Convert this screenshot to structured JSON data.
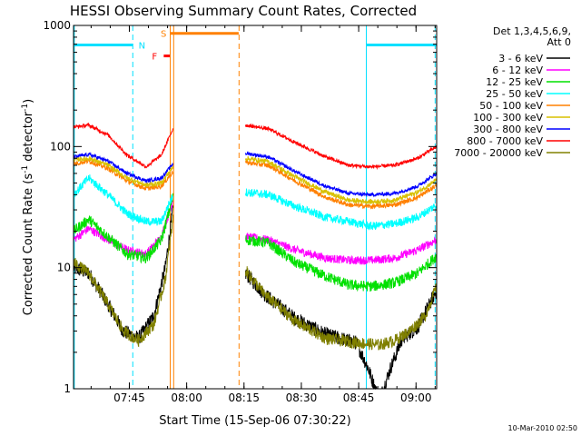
{
  "chart_data": {
    "type": "line",
    "title": "HESSI Observing Summary Count Rates, Corrected",
    "xlabel": "Start Time (15-Sep-06 07:30:22)",
    "ylabel_main": "Corrected Count Rate (s",
    "ylabel_sup1": "-1",
    "ylabel_mid": " detector",
    "ylabel_sup2": "-1",
    "ylabel_end": ")",
    "x_unit": "minutes from 07:30:22",
    "xlim": [
      0,
      95
    ],
    "ylim": [
      1,
      1000
    ],
    "y_scale": "log",
    "x_ticks": [
      {
        "label": "07:45",
        "value": 14.6
      },
      {
        "label": "08:00",
        "value": 29.6
      },
      {
        "label": "08:15",
        "value": 44.6
      },
      {
        "label": "08:30",
        "value": 59.6
      },
      {
        "label": "08:45",
        "value": 74.6
      },
      {
        "label": "09:00",
        "value": 89.6
      }
    ],
    "y_ticks": [
      {
        "label": "1",
        "value": 1
      },
      {
        "label": "10",
        "value": 10
      },
      {
        "label": "100",
        "value": 100
      },
      {
        "label": "1000",
        "value": 1000
      }
    ],
    "legend": {
      "header1": "Det 1,3,4,5,6,9,",
      "header2": "Att 0",
      "placement": "right"
    },
    "data_gap": [
      26.0,
      45.0
    ],
    "series": [
      {
        "name": "3 - 6 keV",
        "color": "#000000",
        "noise": 0.06,
        "seg1": [
          [
            0,
            10
          ],
          [
            4,
            9
          ],
          [
            9,
            5
          ],
          [
            13,
            3
          ],
          [
            17,
            2.6
          ],
          [
            21,
            4
          ],
          [
            24,
            10
          ],
          [
            26,
            30
          ]
        ],
        "seg2": [
          [
            45,
            9
          ],
          [
            50,
            6
          ],
          [
            58,
            3.8
          ],
          [
            66,
            2.8
          ],
          [
            74,
            2.4
          ],
          [
            77,
            1.5
          ],
          [
            80,
            0.8
          ],
          [
            83,
            1.5
          ],
          [
            86,
            2.6
          ],
          [
            90,
            3.2
          ],
          [
            95,
            6.5
          ]
        ]
      },
      {
        "name": "6 - 12 keV",
        "color": "#ff00ff",
        "noise": 0.035,
        "seg1": [
          [
            0,
            17
          ],
          [
            4,
            21
          ],
          [
            9,
            17
          ],
          [
            14,
            14
          ],
          [
            19,
            13
          ],
          [
            23,
            18
          ],
          [
            26,
            36
          ]
        ],
        "seg2": [
          [
            45,
            18
          ],
          [
            51,
            17
          ],
          [
            58,
            14
          ],
          [
            66,
            12
          ],
          [
            72,
            11.5
          ],
          [
            78,
            11.5
          ],
          [
            84,
            12
          ],
          [
            90,
            14
          ],
          [
            95,
            17
          ]
        ]
      },
      {
        "name": "12 - 25 keV",
        "color": "#00e000",
        "noise": 0.045,
        "seg1": [
          [
            0,
            20
          ],
          [
            4,
            25
          ],
          [
            9,
            18
          ],
          [
            14,
            13
          ],
          [
            19,
            12
          ],
          [
            23,
            17
          ],
          [
            26,
            38
          ]
        ],
        "seg2": [
          [
            45,
            17
          ],
          [
            51,
            16
          ],
          [
            58,
            11
          ],
          [
            66,
            8.5
          ],
          [
            72,
            7.2
          ],
          [
            78,
            7
          ],
          [
            84,
            7.5
          ],
          [
            90,
            9
          ],
          [
            95,
            12.5
          ]
        ]
      },
      {
        "name": "25 - 50 keV",
        "color": "#00ffff",
        "noise": 0.035,
        "seg1": [
          [
            0,
            40
          ],
          [
            4,
            55
          ],
          [
            9,
            40
          ],
          [
            14,
            28
          ],
          [
            19,
            24
          ],
          [
            23,
            24
          ],
          [
            26,
            40
          ]
        ],
        "seg2": [
          [
            45,
            42
          ],
          [
            51,
            40
          ],
          [
            58,
            32
          ],
          [
            66,
            26
          ],
          [
            72,
            24
          ],
          [
            78,
            22
          ],
          [
            84,
            23
          ],
          [
            90,
            26
          ],
          [
            95,
            33
          ]
        ]
      },
      {
        "name": "50 - 100 keV",
        "color": "#ff8000",
        "noise": 0.02,
        "seg1": [
          [
            0,
            72
          ],
          [
            4,
            76
          ],
          [
            9,
            66
          ],
          [
            14,
            52
          ],
          [
            19,
            45
          ],
          [
            23,
            47
          ],
          [
            26,
            62
          ]
        ],
        "seg2": [
          [
            45,
            74
          ],
          [
            51,
            70
          ],
          [
            58,
            52
          ],
          [
            66,
            38
          ],
          [
            72,
            33
          ],
          [
            78,
            32
          ],
          [
            84,
            33
          ],
          [
            90,
            38
          ],
          [
            95,
            48
          ]
        ]
      },
      {
        "name": "100 - 300 keV",
        "color": "#d8c000",
        "noise": 0.02,
        "seg1": [
          [
            0,
            78
          ],
          [
            4,
            80
          ],
          [
            9,
            70
          ],
          [
            14,
            55
          ],
          [
            19,
            48
          ],
          [
            23,
            50
          ],
          [
            26,
            68
          ]
        ],
        "seg2": [
          [
            45,
            80
          ],
          [
            51,
            75
          ],
          [
            58,
            56
          ],
          [
            66,
            42
          ],
          [
            72,
            36
          ],
          [
            78,
            35
          ],
          [
            84,
            36
          ],
          [
            90,
            42
          ],
          [
            95,
            53
          ]
        ]
      },
      {
        "name": "300 - 800 keV",
        "color": "#0000ff",
        "noise": 0.015,
        "seg1": [
          [
            0,
            82
          ],
          [
            4,
            86
          ],
          [
            9,
            76
          ],
          [
            14,
            60
          ],
          [
            19,
            52
          ],
          [
            23,
            55
          ],
          [
            26,
            72
          ]
        ],
        "seg2": [
          [
            45,
            88
          ],
          [
            51,
            82
          ],
          [
            58,
            62
          ],
          [
            66,
            47
          ],
          [
            72,
            41
          ],
          [
            78,
            40
          ],
          [
            84,
            41
          ],
          [
            90,
            47
          ],
          [
            95,
            60
          ]
        ]
      },
      {
        "name": "800 - 7000 keV",
        "color": "#ff0000",
        "noise": 0.015,
        "seg1": [
          [
            0,
            145
          ],
          [
            4,
            150
          ],
          [
            9,
            125
          ],
          [
            14,
            85
          ],
          [
            19,
            68
          ],
          [
            23,
            85
          ],
          [
            26,
            140
          ]
        ],
        "seg2": [
          [
            45,
            150
          ],
          [
            51,
            140
          ],
          [
            58,
            108
          ],
          [
            66,
            82
          ],
          [
            72,
            70
          ],
          [
            78,
            68
          ],
          [
            84,
            70
          ],
          [
            90,
            80
          ],
          [
            95,
            100
          ]
        ]
      },
      {
        "name": "7000 - 20000 keV",
        "color": "#808000",
        "noise": 0.05,
        "seg1": [
          [
            0,
            11
          ],
          [
            4,
            9
          ],
          [
            9,
            5
          ],
          [
            13,
            3
          ],
          [
            17,
            2.5
          ],
          [
            21,
            3.4
          ],
          [
            24,
            8
          ],
          [
            26,
            25
          ]
        ],
        "seg2": [
          [
            45,
            9.5
          ],
          [
            50,
            6
          ],
          [
            58,
            3.6
          ],
          [
            66,
            2.6
          ],
          [
            74,
            2.4
          ],
          [
            80,
            2.3
          ],
          [
            84,
            2.5
          ],
          [
            88,
            3
          ],
          [
            92,
            4
          ],
          [
            95,
            7
          ]
        ]
      }
    ],
    "annotations": {
      "n_label": "N",
      "s_label": "S",
      "f_label": "F"
    },
    "night_color": "#00e0ff",
    "saa_color": "#ff8000",
    "flare_color": "#ff0000"
  },
  "footer_timestamp": "10-Mar-2010 02:50"
}
